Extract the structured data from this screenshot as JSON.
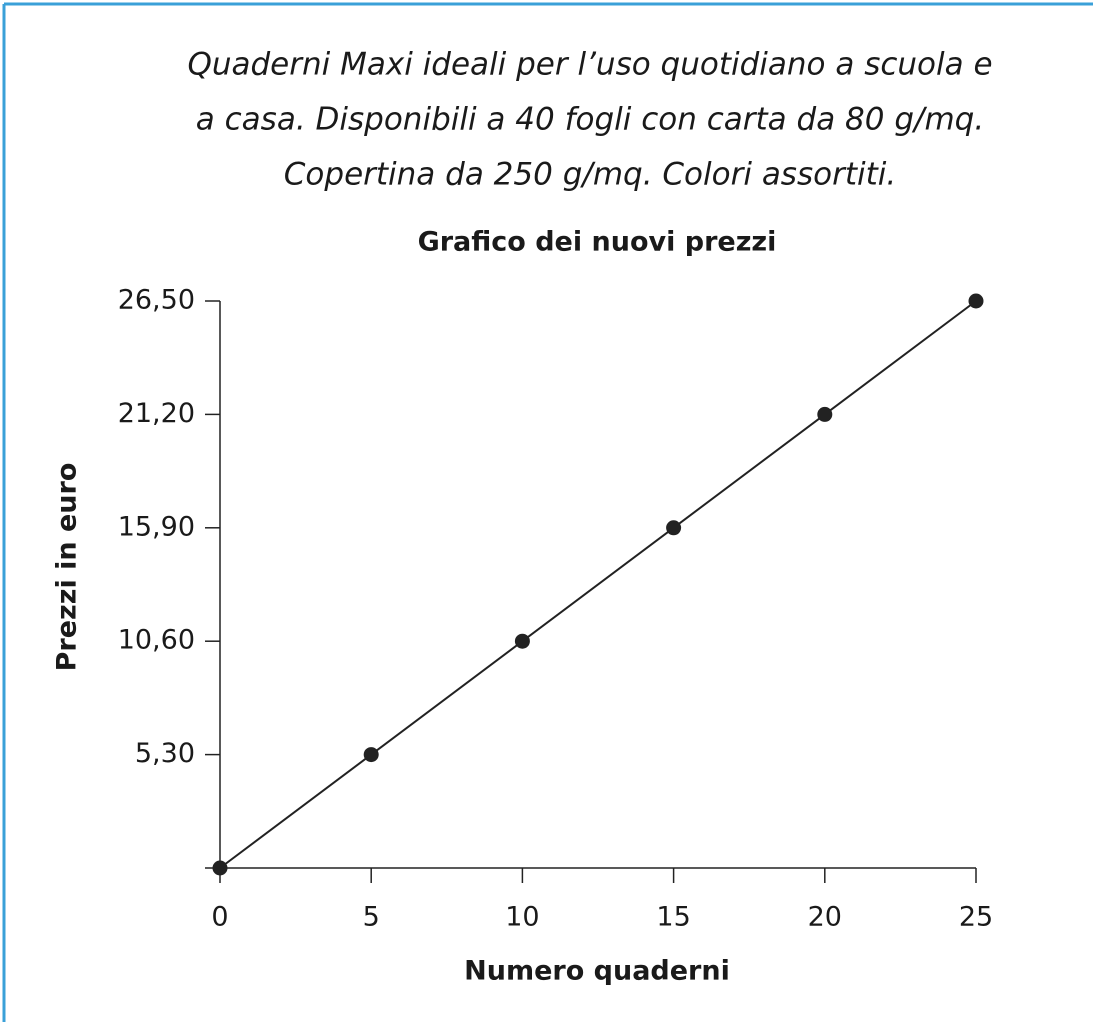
{
  "chart_data": {
    "type": "line",
    "caption": [
      "Quaderni Maxi ideali per l’uso quotidiano a scuola e",
      "a casa. Disponibili a 40 fogli con carta da 80 g/mq.",
      "Copertina da 250 g/mq. Colori assortiti."
    ],
    "title": "Grafico dei nuovi prezzi",
    "x_label": "Numero quaderni",
    "y_label": "Prezzi in euro",
    "x": [
      0,
      5,
      10,
      15,
      20,
      25
    ],
    "values": [
      0,
      5.3,
      10.6,
      15.9,
      21.2,
      26.5
    ],
    "color": "#222222",
    "xlim": [
      0,
      25
    ],
    "xticks": [
      0,
      5,
      10,
      15,
      20,
      25
    ],
    "ylim": [
      0,
      26.5
    ],
    "yticks": [
      {
        "value": 5.3,
        "label": "5,30"
      },
      {
        "value": 10.6,
        "label": "10,60"
      },
      {
        "value": 15.9,
        "label": "15,90"
      },
      {
        "value": 21.2,
        "label": "21,20"
      },
      {
        "value": 26.5,
        "label": "26,50"
      }
    ]
  }
}
